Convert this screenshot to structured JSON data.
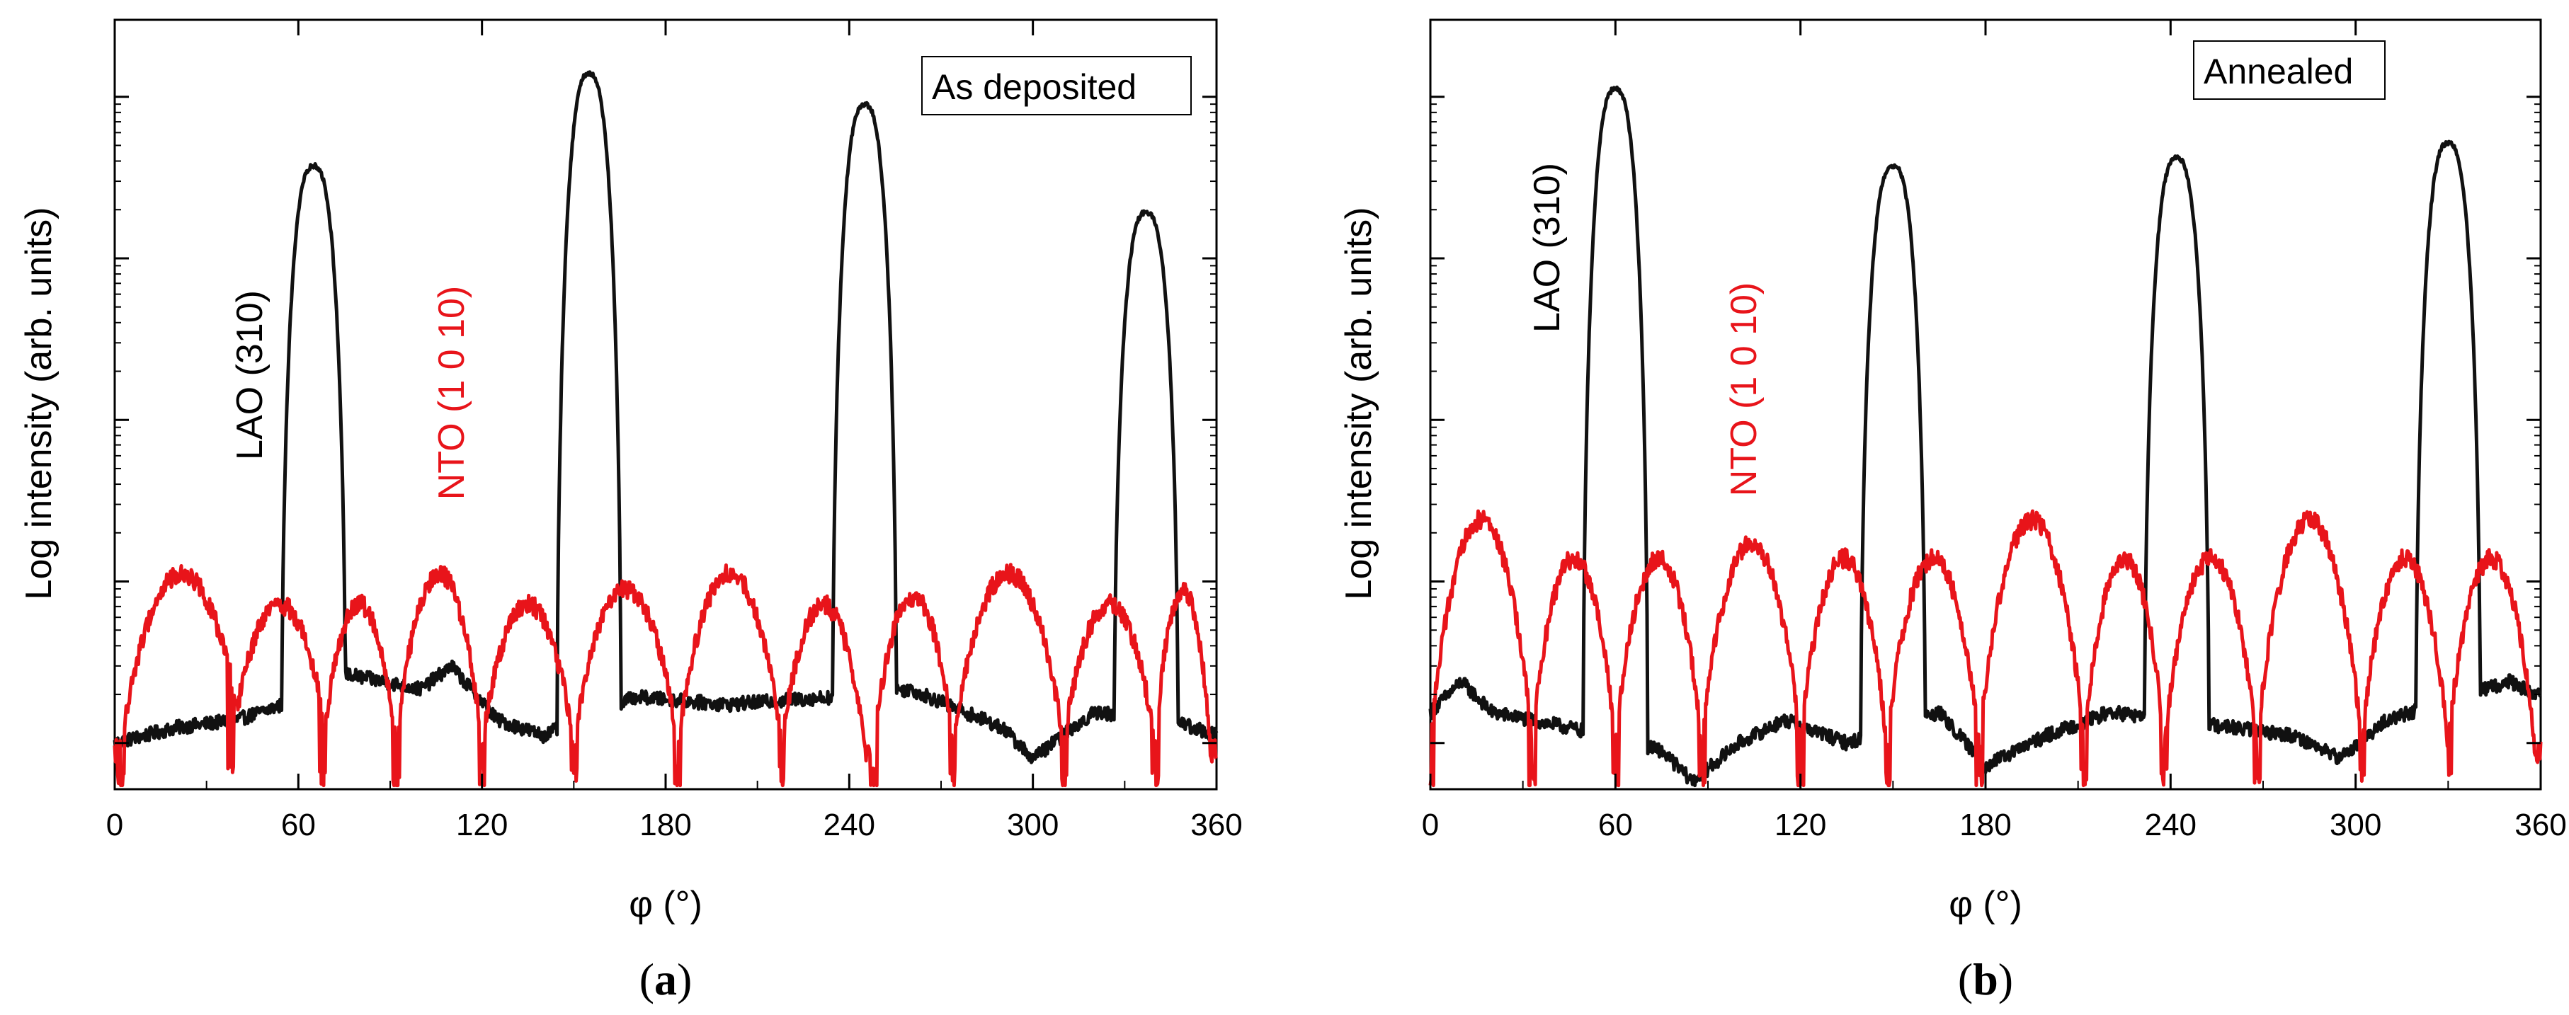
{
  "chart_data": [
    {
      "type": "line",
      "panel_label": "a",
      "legend_box": "As deposited",
      "xlabel": "φ (°)",
      "ylabel": "Log intensity (arb. units)",
      "xlim": [
        0,
        360
      ],
      "xticks": [
        0,
        60,
        120,
        180,
        240,
        300,
        360
      ],
      "ylim": [
        0,
        1
      ],
      "annotations": [
        {
          "text": "LAO (310)",
          "color": "#000000",
          "x": 45,
          "y": 0.62
        },
        {
          "text": "NTO (1 0 10)",
          "color": "#e8141a",
          "x": 112,
          "y": 0.48
        }
      ],
      "series": [
        {
          "name": "LAO (310)",
          "color": "#111111",
          "peaks": [
            {
              "center": 65,
              "height": 0.81
            },
            {
              "center": 155,
              "height": 0.93
            },
            {
              "center": 245,
              "height": 0.89
            },
            {
              "center": 337,
              "height": 0.75
            }
          ],
          "baseline": [
            [
              0,
              0.06
            ],
            [
              20,
              0.08
            ],
            [
              40,
              0.09
            ],
            [
              55,
              0.11
            ],
            [
              75,
              0.15
            ],
            [
              100,
              0.13
            ],
            [
              110,
              0.16
            ],
            [
              125,
              0.09
            ],
            [
              140,
              0.07
            ],
            [
              170,
              0.12
            ],
            [
              200,
              0.11
            ],
            [
              235,
              0.12
            ],
            [
              260,
              0.13
            ],
            [
              290,
              0.08
            ],
            [
              300,
              0.04
            ],
            [
              320,
              0.1
            ],
            [
              345,
              0.09
            ],
            [
              360,
              0.07
            ]
          ]
        },
        {
          "name": "NTO (1 0 10)",
          "color": "#e8141a",
          "arches": [
            {
              "start": 2,
              "end": 42,
              "height": 0.28
            },
            {
              "start": 38,
              "end": 70,
              "height": 0.24
            },
            {
              "start": 68,
              "end": 92,
              "height": 0.24
            },
            {
              "start": 92,
              "end": 120,
              "height": 0.28
            },
            {
              "start": 120,
              "end": 150,
              "height": 0.24
            },
            {
              "start": 150,
              "end": 184,
              "height": 0.26
            },
            {
              "start": 184,
              "end": 218,
              "height": 0.28
            },
            {
              "start": 218,
              "end": 245,
              "height": 0.24
            },
            {
              "start": 248,
              "end": 274,
              "height": 0.25
            },
            {
              "start": 274,
              "end": 310,
              "height": 0.28
            },
            {
              "start": 310,
              "end": 340,
              "height": 0.24
            },
            {
              "start": 340,
              "end": 358,
              "height": 0.26
            }
          ]
        }
      ]
    },
    {
      "type": "line",
      "panel_label": "b",
      "legend_box": "Annealed",
      "xlabel": "φ (°)",
      "ylabel": "Log intensity (arb. units)",
      "xlim": [
        0,
        360
      ],
      "xticks": [
        0,
        60,
        120,
        180,
        240,
        300,
        360
      ],
      "ylim": [
        0,
        1
      ],
      "annotations": [
        {
          "text": "LAO (310)",
          "color": "#000000",
          "x": 40,
          "y": 0.74
        },
        {
          "text": "NTO (1 0 10)",
          "color": "#e8141a",
          "x": 105,
          "y": 0.5
        }
      ],
      "series": [
        {
          "name": "LAO (310)",
          "color": "#111111",
          "peaks": [
            {
              "center": 60,
              "height": 0.91
            },
            {
              "center": 150,
              "height": 0.81
            },
            {
              "center": 242,
              "height": 0.82
            },
            {
              "center": 330,
              "height": 0.84
            }
          ],
          "baseline": [
            [
              0,
              0.1
            ],
            [
              10,
              0.14
            ],
            [
              20,
              0.1
            ],
            [
              45,
              0.08
            ],
            [
              75,
              0.05
            ],
            [
              85,
              0.01
            ],
            [
              100,
              0.06
            ],
            [
              115,
              0.09
            ],
            [
              135,
              0.06
            ],
            [
              165,
              0.1
            ],
            [
              180,
              0.03
            ],
            [
              200,
              0.07
            ],
            [
              220,
              0.1
            ],
            [
              260,
              0.08
            ],
            [
              280,
              0.07
            ],
            [
              295,
              0.04
            ],
            [
              310,
              0.09
            ],
            [
              350,
              0.14
            ],
            [
              360,
              0.12
            ]
          ]
        },
        {
          "name": "NTO (1 0 10)",
          "color": "#e8141a",
          "arches": [
            {
              "start": 0,
              "end": 33,
              "height": 0.35
            },
            {
              "start": 33,
              "end": 60,
              "height": 0.3
            },
            {
              "start": 60,
              "end": 88,
              "height": 0.3
            },
            {
              "start": 88,
              "end": 120,
              "height": 0.32
            },
            {
              "start": 120,
              "end": 148,
              "height": 0.3
            },
            {
              "start": 148,
              "end": 178,
              "height": 0.3
            },
            {
              "start": 178,
              "end": 212,
              "height": 0.35
            },
            {
              "start": 212,
              "end": 238,
              "height": 0.3
            },
            {
              "start": 238,
              "end": 268,
              "height": 0.3
            },
            {
              "start": 268,
              "end": 302,
              "height": 0.35
            },
            {
              "start": 302,
              "end": 330,
              "height": 0.3
            },
            {
              "start": 330,
              "end": 358,
              "height": 0.3
            }
          ]
        }
      ]
    }
  ]
}
